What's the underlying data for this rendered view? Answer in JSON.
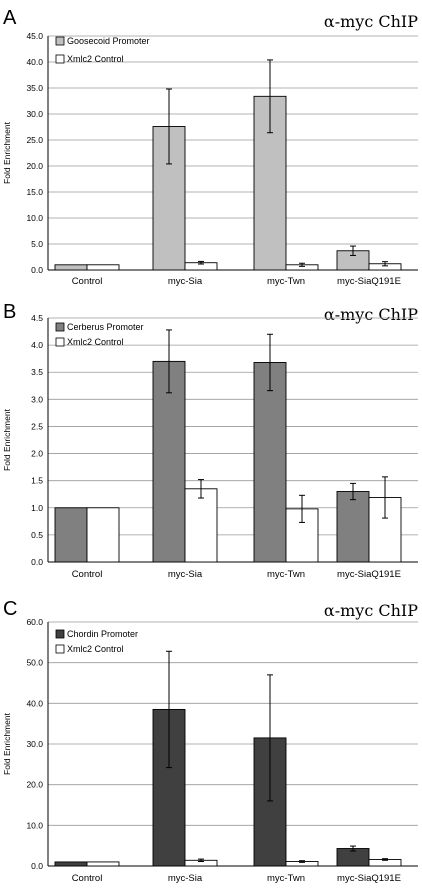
{
  "chart_data": [
    {
      "panel": "A",
      "title": "α-myc ChIP",
      "type": "bar",
      "ylabel": "Fold Enrichment",
      "ylim": [
        0,
        45
      ],
      "yticks": [
        "0.0",
        "5.0",
        "10.0",
        "15.0",
        "20.0",
        "25.0",
        "30.0",
        "35.0",
        "40.0",
        "45.0"
      ],
      "categories": [
        "Control",
        "myc-Sia",
        "myc-Twn",
        "myc-SiaQ191E"
      ],
      "series": [
        {
          "name": "Goosecoid Promoter",
          "color": "#c0c0c0",
          "values": [
            1.0,
            27.6,
            33.4,
            3.7
          ],
          "errors": [
            0,
            7.2,
            7.0,
            0.9
          ]
        },
        {
          "name": "Xmlc2 Control",
          "color": "#ffffff",
          "values": [
            1.0,
            1.4,
            1.0,
            1.2
          ],
          "errors": [
            0,
            0.25,
            0.3,
            0.4
          ]
        }
      ],
      "grid": true,
      "legend": "top-left"
    },
    {
      "panel": "B",
      "title": "α-myc ChIP",
      "type": "bar",
      "ylabel": "Fold Enrichment",
      "ylim": [
        0,
        4.5
      ],
      "yticks": [
        "0.0",
        "0.5",
        "1.0",
        "1.5",
        "2.0",
        "2.5",
        "3.0",
        "3.5",
        "4.0",
        "4.5"
      ],
      "categories": [
        "Control",
        "myc-Sia",
        "myc-Twn",
        "myc-SiaQ191E"
      ],
      "series": [
        {
          "name": "Cerberus Promoter",
          "color": "#808080",
          "values": [
            1.0,
            3.7,
            3.68,
            1.3
          ],
          "errors": [
            0,
            0.58,
            0.52,
            0.15
          ]
        },
        {
          "name": "Xmlc2 Control",
          "color": "#ffffff",
          "values": [
            1.0,
            1.35,
            0.98,
            1.19
          ],
          "errors": [
            0,
            0.17,
            0.25,
            0.38
          ]
        }
      ],
      "grid": true,
      "legend": "top-left"
    },
    {
      "panel": "C",
      "title": "α-myc ChIP",
      "type": "bar",
      "ylabel": "Fold Enrichment",
      "ylim": [
        0,
        60
      ],
      "yticks": [
        "0.0",
        "10.0",
        "20.0",
        "30.0",
        "40.0",
        "50.0",
        "60.0"
      ],
      "categories": [
        "Control",
        "myc-Sia",
        "myc-Twn",
        "myc-SiaQ191E"
      ],
      "series": [
        {
          "name": "Chordin Promoter",
          "color": "#404040",
          "values": [
            1.0,
            38.5,
            31.5,
            4.3
          ],
          "errors": [
            0,
            14.3,
            15.5,
            0.6
          ]
        },
        {
          "name": "Xmlc2 Control",
          "color": "#ffffff",
          "values": [
            1.0,
            1.4,
            1.1,
            1.6
          ],
          "errors": [
            0,
            0.3,
            0.2,
            0.2
          ]
        }
      ],
      "grid": true,
      "legend": "top-left"
    }
  ]
}
